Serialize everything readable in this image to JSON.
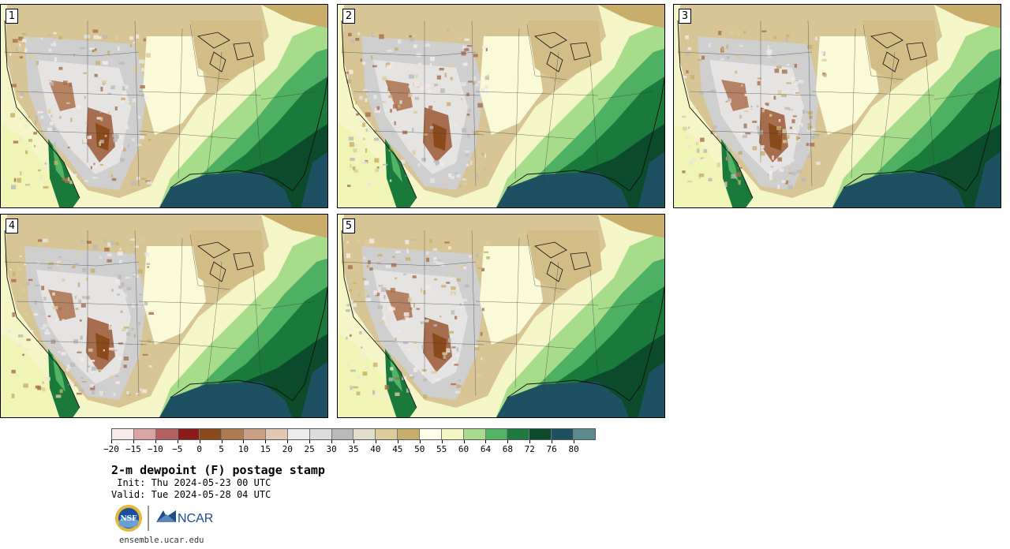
{
  "panels": [
    {
      "id": "1"
    },
    {
      "id": "2"
    },
    {
      "id": "3"
    },
    {
      "id": "4"
    },
    {
      "id": "5"
    }
  ],
  "colorbar": {
    "colors": [
      "#f7eaea",
      "#d8a4a4",
      "#b56060",
      "#8b1a1a",
      "#8a4a1c",
      "#b07a52",
      "#c9a083",
      "#e2c7b2",
      "#ececec",
      "#dcdcdc",
      "#b9b9b9",
      "#e2dcca",
      "#dccc9c",
      "#c8ae6a",
      "#fefee8",
      "#f3f7c4",
      "#a8dc8c",
      "#52b464",
      "#1e7a3e",
      "#0b4a2a",
      "#1d5060",
      "#5b8a8e"
    ],
    "tick_labels": [
      "-20",
      "-15",
      "-10",
      "-5",
      "0",
      "5",
      "10",
      "15",
      "20",
      "25",
      "30",
      "35",
      "40",
      "45",
      "50",
      "55",
      "60",
      "64",
      "68",
      "72",
      "76",
      "80"
    ]
  },
  "title": "2-m dewpoint (F) postage stamp",
  "init": " Init: Thu 2024-05-23 00 UTC",
  "valid": "Valid: Tue 2024-05-28 04 UTC",
  "logos": {
    "nsf": "NSF",
    "ncar": "NCAR"
  },
  "website": "ensemble.ucar.edu"
}
